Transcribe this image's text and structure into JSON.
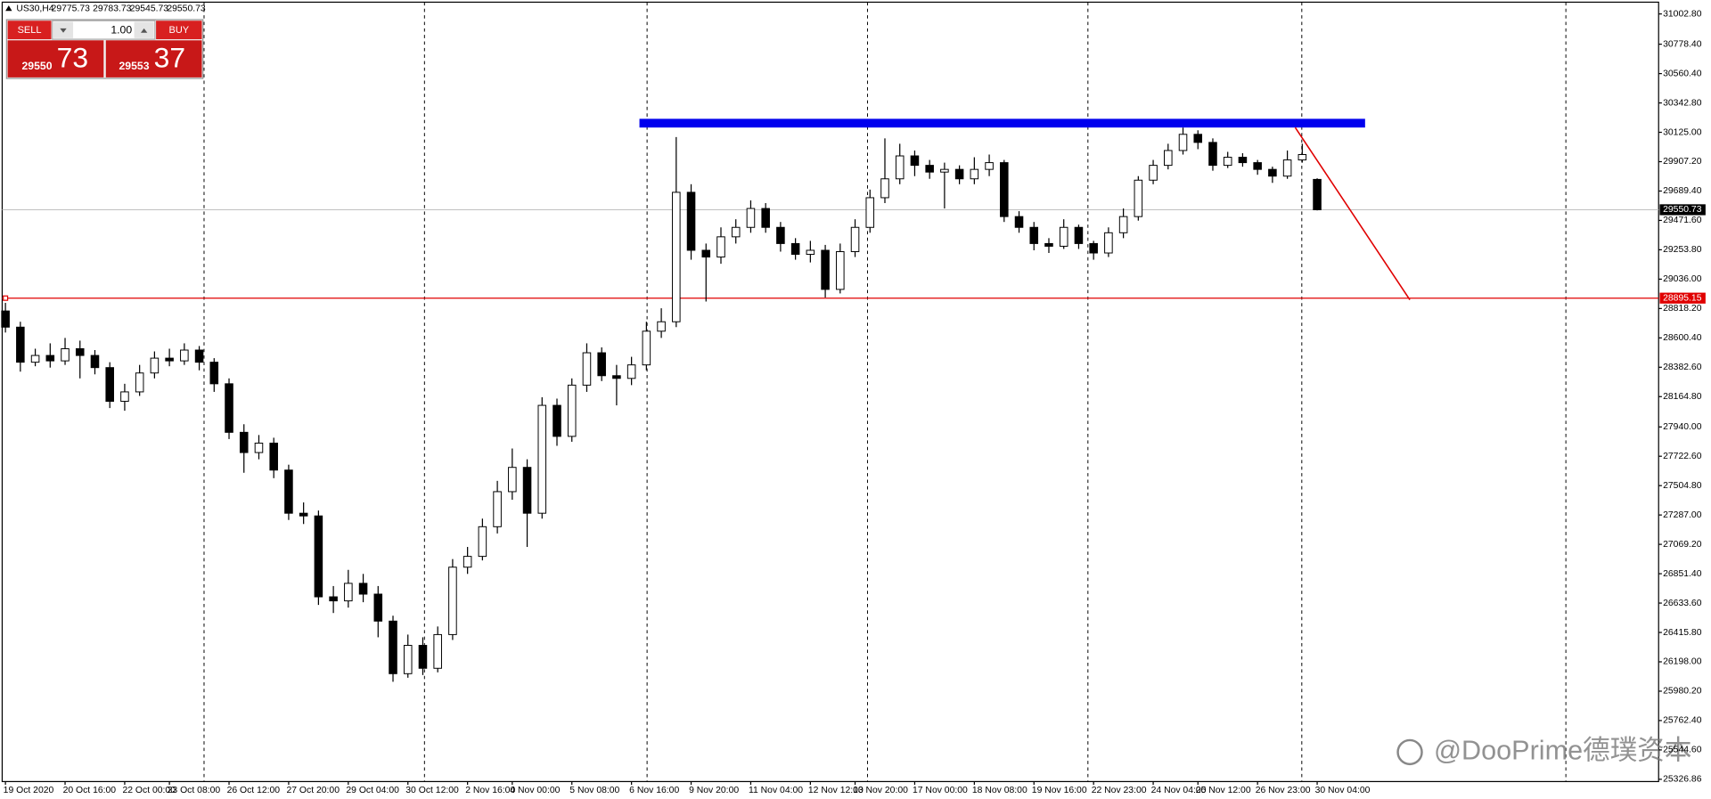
{
  "chart_data": {
    "type": "candlestick",
    "symbol": "US30,H4",
    "categories": [
      "19 Oct 2020",
      null,
      null,
      null,
      "20 Oct 16:00",
      null,
      null,
      null,
      "22 Oct 00:00",
      null,
      null,
      "23 Oct 08:00",
      null,
      null,
      null,
      "26 Oct 12:00",
      null,
      null,
      null,
      "27 Oct 20:00",
      null,
      null,
      null,
      "29 Oct 04:00",
      null,
      null,
      null,
      "30 Oct 12:00",
      null,
      null,
      null,
      "2 Nov 16:00",
      null,
      null,
      "4 Nov 00:00",
      null,
      null,
      null,
      "5 Nov 08:00",
      null,
      null,
      null,
      "6 Nov 16:00",
      null,
      null,
      null,
      "9 Nov 20:00",
      null,
      null,
      null,
      "11 Nov 04:00",
      null,
      null,
      null,
      "12 Nov 12:00",
      null,
      null,
      "13 Nov 20:00",
      null,
      null,
      null,
      "17 Nov 00:00",
      null,
      null,
      null,
      "18 Nov 08:00",
      null,
      null,
      null,
      "19 Nov 16:00",
      null,
      null,
      null,
      "22 Nov 23:00",
      null,
      null,
      null,
      "24 Nov 04:00",
      null,
      null,
      "25 Nov 12:00",
      null,
      null,
      null,
      "26 Nov 23:00",
      null,
      null,
      null,
      "30 Nov 04:00"
    ],
    "open": [
      28800,
      28680,
      28420,
      28470,
      28430,
      28520,
      28470,
      28380,
      28130,
      28200,
      28340,
      28450,
      28430,
      28510,
      28420,
      28260,
      27900,
      27750,
      27820,
      27620,
      27300,
      27280,
      26680,
      26650,
      26780,
      26700,
      26500,
      26110,
      26320,
      26150,
      26400,
      26900,
      26980,
      27200,
      27460,
      27640,
      27300,
      28100,
      27870,
      28250,
      28490,
      28320,
      28300,
      28400,
      28650,
      28720,
      29680,
      29250,
      29200,
      29350,
      29420,
      29560,
      29420,
      29300,
      29220,
      29250,
      28960,
      29240,
      29420,
      29640,
      29780,
      29950,
      29880,
      29830,
      29850,
      29780,
      29850,
      29900,
      29500,
      29420,
      29300,
      29280,
      29420,
      29300,
      29230,
      29380,
      29500,
      29770,
      29880,
      29990,
      30110,
      30050,
      29880,
      29940,
      29900,
      29850,
      29800,
      29920,
      29775.73
    ],
    "high": [
      28860,
      28720,
      28520,
      28560,
      28600,
      28580,
      28510,
      28420,
      28260,
      28400,
      28500,
      28520,
      28560,
      28540,
      28450,
      28300,
      27960,
      27880,
      27860,
      27660,
      27380,
      27320,
      26760,
      26880,
      26850,
      26760,
      26540,
      26400,
      26380,
      26460,
      26960,
      27050,
      27260,
      27540,
      27780,
      27700,
      28160,
      28150,
      28300,
      28560,
      28530,
      28400,
      28460,
      28720,
      28820,
      30090,
      29740,
      29300,
      29420,
      29480,
      29620,
      29600,
      29460,
      29340,
      29320,
      29290,
      29300,
      29480,
      29700,
      30080,
      30040,
      29990,
      29920,
      29900,
      29880,
      29940,
      29960,
      29920,
      29540,
      29460,
      29340,
      29480,
      29440,
      29320,
      29420,
      29560,
      29800,
      29920,
      30040,
      30160,
      30140,
      30080,
      29980,
      29970,
      29920,
      29870,
      29990,
      30040,
      29783.73
    ],
    "low": [
      28640,
      28350,
      28390,
      28380,
      28400,
      28300,
      28330,
      28080,
      28060,
      28170,
      28300,
      28390,
      28400,
      28360,
      28200,
      27850,
      27600,
      27700,
      27560,
      27250,
      27220,
      26620,
      26560,
      26600,
      26640,
      26380,
      26050,
      26080,
      26100,
      26120,
      26360,
      26850,
      26950,
      27150,
      27400,
      27050,
      27260,
      27800,
      27830,
      28200,
      28280,
      28100,
      28250,
      28360,
      28600,
      28680,
      29180,
      28870,
      29150,
      29300,
      29380,
      29380,
      29240,
      29180,
      29160,
      28900,
      28930,
      29200,
      29380,
      29600,
      29740,
      29800,
      29780,
      29560,
      29740,
      29740,
      29800,
      29460,
      29380,
      29250,
      29230,
      29260,
      29260,
      29180,
      29200,
      29340,
      29470,
      29740,
      29850,
      29960,
      30000,
      29840,
      29860,
      29870,
      29810,
      29750,
      29780,
      29900,
      29545.73
    ],
    "close": [
      28680,
      28420,
      28470,
      28430,
      28520,
      28470,
      28380,
      28130,
      28200,
      28340,
      28450,
      28430,
      28510,
      28420,
      28260,
      27900,
      27750,
      27820,
      27620,
      27300,
      27280,
      26680,
      26650,
      26780,
      26700,
      26500,
      26110,
      26320,
      26150,
      26400,
      26900,
      26980,
      27200,
      27460,
      27640,
      27300,
      28100,
      27870,
      28250,
      28490,
      28320,
      28300,
      28400,
      28650,
      28720,
      29680,
      29250,
      29200,
      29350,
      29420,
      29560,
      29420,
      29300,
      29220,
      29250,
      28960,
      29240,
      29420,
      29640,
      29780,
      29950,
      29880,
      29830,
      29850,
      29780,
      29850,
      29900,
      29500,
      29420,
      29300,
      29280,
      29420,
      29300,
      29230,
      29380,
      29500,
      29770,
      29880,
      29990,
      30110,
      30050,
      29880,
      29940,
      29900,
      29850,
      29800,
      29920,
      29960,
      29550.73
    ],
    "ylim": [
      25310,
      31090
    ],
    "yticks": [
      {
        "value": 31002.8,
        "label": "31002.80"
      },
      {
        "value": 30778.4,
        "label": "30778.40"
      },
      {
        "value": 30560.4,
        "label": "30560.40"
      },
      {
        "value": 30342.8,
        "label": "30342.80"
      },
      {
        "value": 30125,
        "label": "30125.00"
      },
      {
        "value": 29907.2,
        "label": "29907.20"
      },
      {
        "value": 29689.4,
        "label": "29689.40"
      },
      {
        "value": 29471.6,
        "label": "29471.60"
      },
      {
        "value": 29253.8,
        "label": "29253.80"
      },
      {
        "value": 29036,
        "label": "29036.00"
      },
      {
        "value": 28818.2,
        "label": "28818.20"
      },
      {
        "value": 28600.4,
        "label": "28600.40"
      },
      {
        "value": 28382.6,
        "label": "28382.60"
      },
      {
        "value": 28164.8,
        "label": "28164.80"
      },
      {
        "value": 27940,
        "label": "27940.00"
      },
      {
        "value": 27722.6,
        "label": "27722.60"
      },
      {
        "value": 27504.8,
        "label": "27504.80"
      },
      {
        "value": 27287,
        "label": "27287.00"
      },
      {
        "value": 27069.2,
        "label": "27069.20"
      },
      {
        "value": 26851.4,
        "label": "26851.40"
      },
      {
        "value": 26633.6,
        "label": "26633.60"
      },
      {
        "value": 26415.8,
        "label": "26415.80"
      },
      {
        "value": 26198,
        "label": "26198.00"
      },
      {
        "value": 25980.2,
        "label": "25980.20"
      },
      {
        "value": 25762.4,
        "label": "25762.40"
      },
      {
        "value": 25544.6,
        "label": "25544.60"
      },
      {
        "value": 25326.86,
        "label": "25326.86"
      }
    ],
    "grid": false,
    "bull_color": "#ffffff",
    "bear_color": "#000000",
    "level_line": 28895.15,
    "level_color": "#e00000"
  },
  "trade_panel": {
    "sell": "SELL",
    "buy": "BUY",
    "lots": "1.00",
    "sell_big": "29550",
    "sell_small": "73",
    "buy_big": "29553",
    "buy_small": "37"
  },
  "watermark": "@DooPrime德璞资本"
}
